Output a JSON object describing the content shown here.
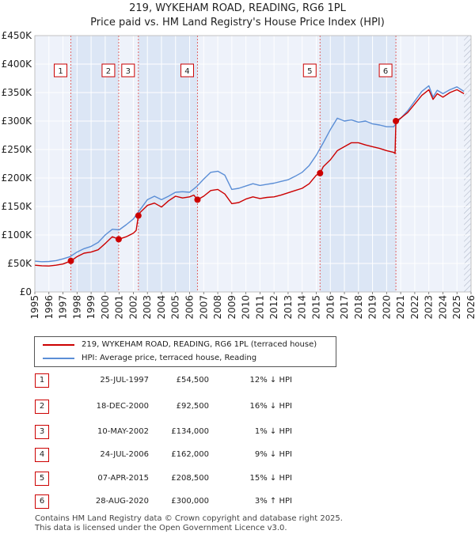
{
  "chart_data": {
    "type": "line",
    "title": "219, WYKEHAM ROAD, READING, RG6 1PL",
    "subtitle": "Price paid vs. HM Land Registry's House Price Index (HPI)",
    "xlabel": "",
    "ylabel": "",
    "xlim": [
      1995,
      2026
    ],
    "ylim": [
      0,
      450000
    ],
    "grid": true,
    "y_ticks": [
      0,
      50000,
      100000,
      150000,
      200000,
      250000,
      300000,
      350000,
      400000,
      450000
    ],
    "y_tick_labels": [
      "£0",
      "£50K",
      "£100K",
      "£150K",
      "£200K",
      "£250K",
      "£300K",
      "£350K",
      "£400K",
      "£450K"
    ],
    "x_ticks": [
      1995,
      1996,
      1997,
      1998,
      1999,
      2000,
      2001,
      2002,
      2003,
      2004,
      2005,
      2006,
      2007,
      2008,
      2009,
      2010,
      2011,
      2012,
      2013,
      2014,
      2015,
      2016,
      2017,
      2018,
      2019,
      2020,
      2021,
      2022,
      2023,
      2024,
      2025,
      2026
    ],
    "x_tick_labels": [
      "1995",
      "1996",
      "1997",
      "1998",
      "1999",
      "2000",
      "2001",
      "2002",
      "2003",
      "2004",
      "2005",
      "2006",
      "2007",
      "2008",
      "2009",
      "2010",
      "2011",
      "2012",
      "2013",
      "2014",
      "2015",
      "2016",
      "2017",
      "2018",
      "2019",
      "2020",
      "2021",
      "2022",
      "2023",
      "2024",
      "2025",
      "2026"
    ],
    "data_end_x": 2025.5,
    "series": [
      {
        "name": "219, WYKEHAM ROAD, READING, RG6 1PL (terraced house)",
        "color": "#cc0000",
        "x": [
          1995.0,
          1995.5,
          1996.0,
          1996.5,
          1997.0,
          1997.56,
          1998.0,
          1998.5,
          1999.0,
          1999.5,
          2000.0,
          2000.5,
          2000.96,
          2001.5,
          2002.0,
          2002.2,
          2002.36,
          2002.5,
          2003.0,
          2003.5,
          2004.0,
          2004.5,
          2005.0,
          2005.5,
          2006.0,
          2006.3,
          2006.56,
          2007.0,
          2007.5,
          2008.0,
          2008.5,
          2009.0,
          2009.5,
          2010.0,
          2010.5,
          2011.0,
          2011.5,
          2012.0,
          2012.5,
          2013.0,
          2013.5,
          2014.0,
          2014.5,
          2015.0,
          2015.27,
          2015.5,
          2016.0,
          2016.5,
          2017.0,
          2017.5,
          2018.0,
          2018.5,
          2019.0,
          2019.5,
          2020.0,
          2020.5,
          2020.6,
          2020.66,
          2021.0,
          2021.5,
          2022.0,
          2022.5,
          2023.0,
          2023.3,
          2023.6,
          2024.0,
          2024.5,
          2025.0,
          2025.5
        ],
        "y": [
          47000,
          46000,
          45500,
          47000,
          49000,
          54500,
          62000,
          68000,
          70000,
          74000,
          85000,
          97000,
          92500,
          97000,
          103000,
          108000,
          134000,
          140000,
          152000,
          156000,
          149000,
          160000,
          168000,
          165000,
          167000,
          170000,
          162000,
          168000,
          178000,
          180000,
          172000,
          155000,
          157000,
          163000,
          167000,
          164000,
          166000,
          167000,
          170000,
          174000,
          178000,
          182000,
          190000,
          205000,
          208500,
          220000,
          232000,
          248000,
          255000,
          262000,
          262000,
          258000,
          255000,
          252000,
          248000,
          245000,
          243000,
          300000,
          305000,
          315000,
          330000,
          345000,
          355000,
          338000,
          348000,
          342000,
          350000,
          355000,
          348000
        ]
      },
      {
        "name": "HPI: Average price, terraced house, Reading",
        "color": "#5b8ed6",
        "x": [
          1995.0,
          1995.5,
          1996.0,
          1996.5,
          1997.0,
          1997.5,
          1998.0,
          1998.5,
          1999.0,
          1999.5,
          2000.0,
          2000.5,
          2001.0,
          2001.5,
          2002.0,
          2002.5,
          2003.0,
          2003.5,
          2004.0,
          2004.5,
          2005.0,
          2005.5,
          2006.0,
          2006.5,
          2007.0,
          2007.5,
          2008.0,
          2008.5,
          2009.0,
          2009.5,
          2010.0,
          2010.5,
          2011.0,
          2011.5,
          2012.0,
          2012.5,
          2013.0,
          2013.5,
          2014.0,
          2014.5,
          2015.0,
          2015.5,
          2016.0,
          2016.5,
          2017.0,
          2017.5,
          2018.0,
          2018.5,
          2019.0,
          2019.5,
          2020.0,
          2020.5,
          2021.0,
          2021.5,
          2022.0,
          2022.5,
          2023.0,
          2023.3,
          2023.6,
          2024.0,
          2024.5,
          2025.0,
          2025.5
        ],
        "y": [
          54000,
          53000,
          53500,
          55000,
          58000,
          62000,
          70000,
          76000,
          80000,
          87000,
          100000,
          110000,
          109000,
          118000,
          128000,
          145000,
          162000,
          168000,
          162000,
          168000,
          175000,
          176000,
          175000,
          185000,
          198000,
          210000,
          212000,
          205000,
          180000,
          182000,
          186000,
          190000,
          187000,
          189000,
          191000,
          194000,
          197000,
          203000,
          210000,
          222000,
          240000,
          262000,
          285000,
          305000,
          300000,
          302000,
          298000,
          300000,
          295000,
          293000,
          290000,
          290000,
          305000,
          318000,
          335000,
          352000,
          362000,
          342000,
          354000,
          348000,
          355000,
          360000,
          352000
        ]
      }
    ],
    "sales": [
      {
        "num": "1",
        "x": 1997.56,
        "price": 54500
      },
      {
        "num": "2",
        "x": 2000.96,
        "price": 92500
      },
      {
        "num": "3",
        "x": 2002.36,
        "price": 134000
      },
      {
        "num": "4",
        "x": 2006.56,
        "price": 162000
      },
      {
        "num": "5",
        "x": 2015.27,
        "price": 208500
      },
      {
        "num": "6",
        "x": 2020.66,
        "price": 300000
      }
    ]
  },
  "legend": {
    "items": [
      {
        "label": "219, WYKEHAM ROAD, READING, RG6 1PL (terraced house)",
        "color": "#cc0000"
      },
      {
        "label": "HPI: Average price, terraced house, Reading",
        "color": "#5b8ed6"
      }
    ]
  },
  "table": {
    "rows": [
      {
        "num": "1",
        "date": "25-JUL-1997",
        "price": "£54,500",
        "hpi": "12% ↓ HPI"
      },
      {
        "num": "2",
        "date": "18-DEC-2000",
        "price": "£92,500",
        "hpi": "16% ↓ HPI"
      },
      {
        "num": "3",
        "date": "10-MAY-2002",
        "price": "£134,000",
        "hpi": "1% ↓ HPI"
      },
      {
        "num": "4",
        "date": "24-JUL-2006",
        "price": "£162,000",
        "hpi": "9% ↓ HPI"
      },
      {
        "num": "5",
        "date": "07-APR-2015",
        "price": "£208,500",
        "hpi": "15% ↓ HPI"
      },
      {
        "num": "6",
        "date": "28-AUG-2020",
        "price": "£300,000",
        "hpi": "3% ↑ HPI"
      }
    ]
  },
  "footer": {
    "line1": "Contains HM Land Registry data © Crown copyright and database right 2025.",
    "line2": "This data is licensed under the Open Government Licence v3.0."
  },
  "colors": {
    "property": "#cc0000",
    "hpi": "#5b8ed6",
    "plot_bg": "#eef2fa",
    "shade": "#dce6f5",
    "grid": "#ffffff"
  }
}
